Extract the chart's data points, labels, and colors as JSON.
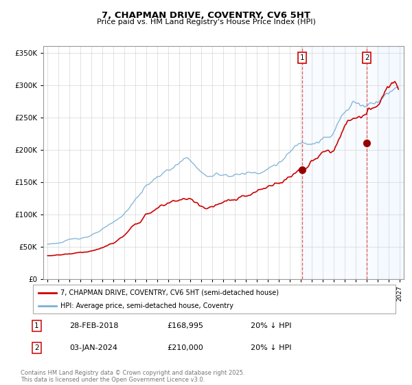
{
  "title": "7, CHAPMAN DRIVE, COVENTRY, CV6 5HT",
  "subtitle": "Price paid vs. HM Land Registry's House Price Index (HPI)",
  "legend_property": "7, CHAPMAN DRIVE, COVENTRY, CV6 5HT (semi-detached house)",
  "legend_hpi": "HPI: Average price, semi-detached house, Coventry",
  "transaction1_date": "28-FEB-2018",
  "transaction1_price": "£168,995",
  "transaction1_hpi": "20% ↓ HPI",
  "transaction2_date": "03-JAN-2024",
  "transaction2_price": "£210,000",
  "transaction2_hpi": "20% ↓ HPI",
  "footer": "Contains HM Land Registry data © Crown copyright and database right 2025.\nThis data is licensed under the Open Government Licence v3.0.",
  "property_color": "#cc0000",
  "hpi_color": "#7ab0d4",
  "background_color": "#ffffff",
  "grid_color": "#cccccc",
  "shaded_color": "#ddeeff",
  "ylim": [
    0,
    360000
  ],
  "yticks": [
    0,
    50000,
    100000,
    150000,
    200000,
    250000,
    300000,
    350000
  ],
  "year_start": 1995,
  "year_end": 2027,
  "t1_year": 2018.15,
  "t1_price": 168995,
  "t2_year": 2024.05,
  "t2_price": 210000
}
